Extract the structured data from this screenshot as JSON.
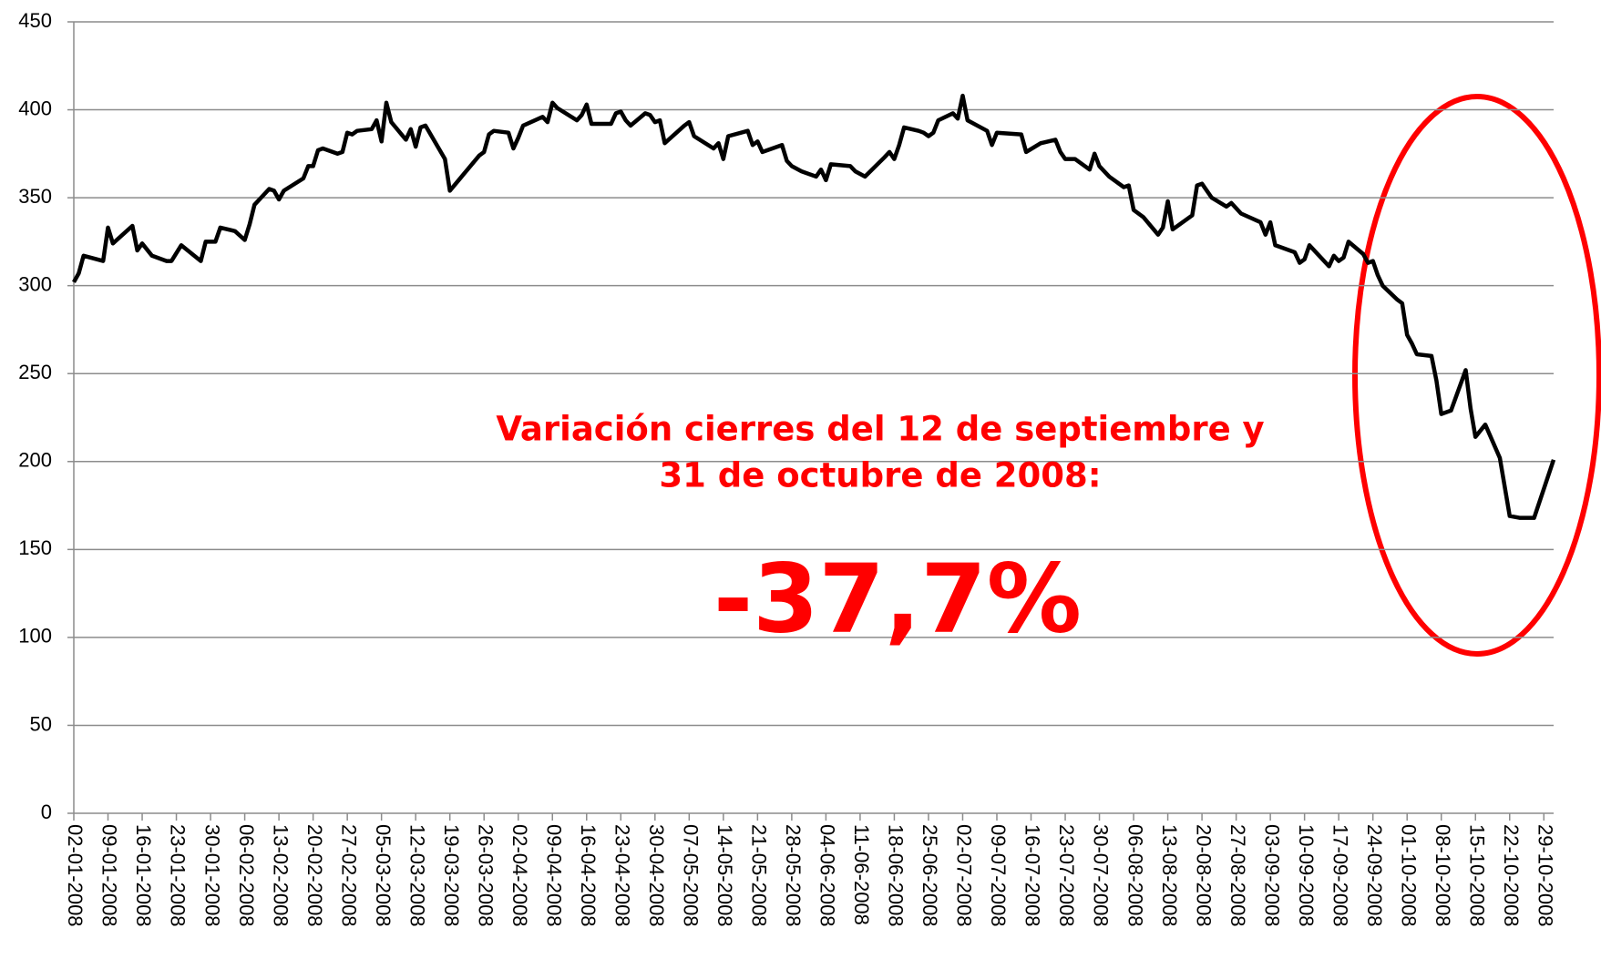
{
  "chart_data": {
    "type": "line",
    "annotations": [
      "Variación cierres del 12 de septiembre y",
      "31 de octubre de 2008:",
      "-37,7%"
    ],
    "annotation_color": "#ff0000",
    "x": [
      "02-01-2008",
      "03-01-2008",
      "04-01-2008",
      "08-01-2008",
      "09-01-2008",
      "10-01-2008",
      "14-01-2008",
      "15-01-2008",
      "16-01-2008",
      "18-01-2008",
      "21-01-2008",
      "22-01-2008",
      "24-01-2008",
      "28-01-2008",
      "29-01-2008",
      "31-01-2008",
      "01-02-2008",
      "04-02-2008",
      "06-02-2008",
      "07-02-2008",
      "08-02-2008",
      "11-02-2008",
      "12-02-2008",
      "13-02-2008",
      "14-02-2008",
      "18-02-2008",
      "19-02-2008",
      "20-02-2008",
      "21-02-2008",
      "22-02-2008",
      "25-02-2008",
      "26-02-2008",
      "27-02-2008",
      "28-02-2008",
      "29-02-2008",
      "03-03-2008",
      "04-03-2008",
      "05-03-2008",
      "06-03-2008",
      "07-03-2008",
      "10-03-2008",
      "11-03-2008",
      "12-03-2008",
      "13-03-2008",
      "14-03-2008",
      "18-03-2008",
      "19-03-2008",
      "25-03-2008",
      "26-03-2008",
      "27-03-2008",
      "28-03-2008",
      "31-03-2008",
      "01-04-2008",
      "02-04-2008",
      "03-04-2008",
      "07-04-2008",
      "08-04-2008",
      "09-04-2008",
      "10-04-2008",
      "14-04-2008",
      "15-04-2008",
      "16-04-2008",
      "17-04-2008",
      "21-04-2008",
      "22-04-2008",
      "23-04-2008",
      "24-04-2008",
      "25-04-2008",
      "28-04-2008",
      "29-04-2008",
      "30-04-2008",
      "01-05-2008",
      "02-05-2008",
      "06-05-2008",
      "07-05-2008",
      "08-05-2008",
      "12-05-2008",
      "13-05-2008",
      "14-05-2008",
      "15-05-2008",
      "19-05-2008",
      "20-05-2008",
      "21-05-2008",
      "22-05-2008",
      "26-05-2008",
      "27-05-2008",
      "28-05-2008",
      "30-05-2008",
      "02-06-2008",
      "03-06-2008",
      "04-06-2008",
      "05-06-2008",
      "09-06-2008",
      "10-06-2008",
      "12-06-2008",
      "16-06-2008",
      "17-06-2008",
      "18-06-2008",
      "19-06-2008",
      "20-06-2008",
      "23-06-2008",
      "24-06-2008",
      "25-06-2008",
      "26-06-2008",
      "27-06-2008",
      "30-06-2008",
      "01-07-2008",
      "02-07-2008",
      "03-07-2008",
      "07-07-2008",
      "08-07-2008",
      "09-07-2008",
      "14-07-2008",
      "15-07-2008",
      "18-07-2008",
      "21-07-2008",
      "22-07-2008",
      "23-07-2008",
      "25-07-2008",
      "28-07-2008",
      "29-07-2008",
      "30-07-2008",
      "01-08-2008",
      "04-08-2008",
      "05-08-2008",
      "06-08-2008",
      "08-08-2008",
      "11-08-2008",
      "12-08-2008",
      "13-08-2008",
      "14-08-2008",
      "18-08-2008",
      "19-08-2008",
      "20-08-2008",
      "22-08-2008",
      "25-08-2008",
      "26-08-2008",
      "28-08-2008",
      "01-09-2008",
      "02-09-2008",
      "03-09-2008",
      "04-09-2008",
      "08-09-2008",
      "09-09-2008",
      "10-09-2008",
      "11-09-2008",
      "15-09-2008",
      "16-09-2008",
      "17-09-2008",
      "18-09-2008",
      "19-09-2008",
      "22-09-2008",
      "23-09-2008",
      "24-09-2008",
      "25-09-2008",
      "26-09-2008",
      "29-09-2008",
      "30-09-2008",
      "01-10-2008",
      "02-10-2008",
      "03-10-2008",
      "06-10-2008",
      "07-10-2008",
      "08-10-2008",
      "10-10-2008",
      "13-10-2008",
      "14-10-2008",
      "15-10-2008",
      "17-10-2008",
      "20-10-2008",
      "22-10-2008",
      "24-10-2008",
      "27-10-2008",
      "31-10-2008"
    ],
    "series": [
      {
        "color": "#000000",
        "values": [
          302,
          307,
          317,
          314,
          333,
          324,
          334,
          320,
          324,
          317,
          314,
          314,
          323,
          314,
          325,
          325,
          333,
          331,
          326,
          335,
          346,
          355,
          354,
          349,
          354,
          361,
          368,
          368,
          377,
          378,
          375,
          376,
          387,
          386,
          388,
          389,
          394,
          382,
          404,
          393,
          383,
          389,
          379,
          390,
          391,
          372,
          354,
          374,
          376,
          386,
          388,
          387,
          378,
          384,
          391,
          396,
          393,
          404,
          401,
          394,
          397,
          403,
          392,
          392,
          398,
          399,
          394,
          391,
          398,
          397,
          393,
          394,
          381,
          391,
          393,
          385,
          378,
          381,
          372,
          385,
          388,
          380,
          382,
          376,
          380,
          371,
          368,
          365,
          362,
          366,
          360,
          369,
          368,
          365,
          362,
          373,
          376,
          372,
          380,
          390,
          388,
          387,
          385,
          387,
          394,
          398,
          395,
          408,
          394,
          388,
          380,
          387,
          386,
          376,
          381,
          383,
          376,
          372,
          372,
          366,
          375,
          368,
          362,
          356,
          357,
          343,
          339,
          329,
          333,
          348,
          332,
          340,
          357,
          358,
          350,
          345,
          347,
          341,
          336,
          329,
          336,
          323,
          319,
          313,
          315,
          323,
          311,
          317,
          314,
          316,
          325,
          318,
          313,
          314,
          306,
          300,
          292,
          290,
          272,
          267,
          261,
          260,
          246,
          227,
          229,
          252,
          230,
          214,
          221,
          202,
          169,
          168,
          168,
          201
        ]
      }
    ],
    "xlim": [
      "02-01-2008",
      "31-10-2008"
    ],
    "xticks": [
      "02-01-2008",
      "09-01-2008",
      "16-01-2008",
      "23-01-2008",
      "30-01-2008",
      "06-02-2008",
      "13-02-2008",
      "20-02-2008",
      "27-02-2008",
      "05-03-2008",
      "12-03-2008",
      "19-03-2008",
      "26-03-2008",
      "02-04-2008",
      "09-04-2008",
      "16-04-2008",
      "23-04-2008",
      "30-04-2008",
      "07-05-2008",
      "14-05-2008",
      "21-05-2008",
      "28-05-2008",
      "04-06-2008",
      "11-06-2008",
      "18-06-2008",
      "25-06-2008",
      "02-07-2008",
      "09-07-2008",
      "16-07-2008",
      "23-07-2008",
      "30-07-2008",
      "06-08-2008",
      "13-08-2008",
      "20-08-2008",
      "27-08-2008",
      "03-09-2008",
      "10-09-2008",
      "17-09-2008",
      "24-09-2008",
      "01-10-2008",
      "08-10-2008",
      "15-10-2008",
      "22-10-2008",
      "29-10-2008"
    ],
    "ylim": [
      0,
      450
    ],
    "yticks": [
      0,
      50,
      100,
      150,
      200,
      250,
      300,
      350,
      400,
      450
    ],
    "grid": true
  }
}
